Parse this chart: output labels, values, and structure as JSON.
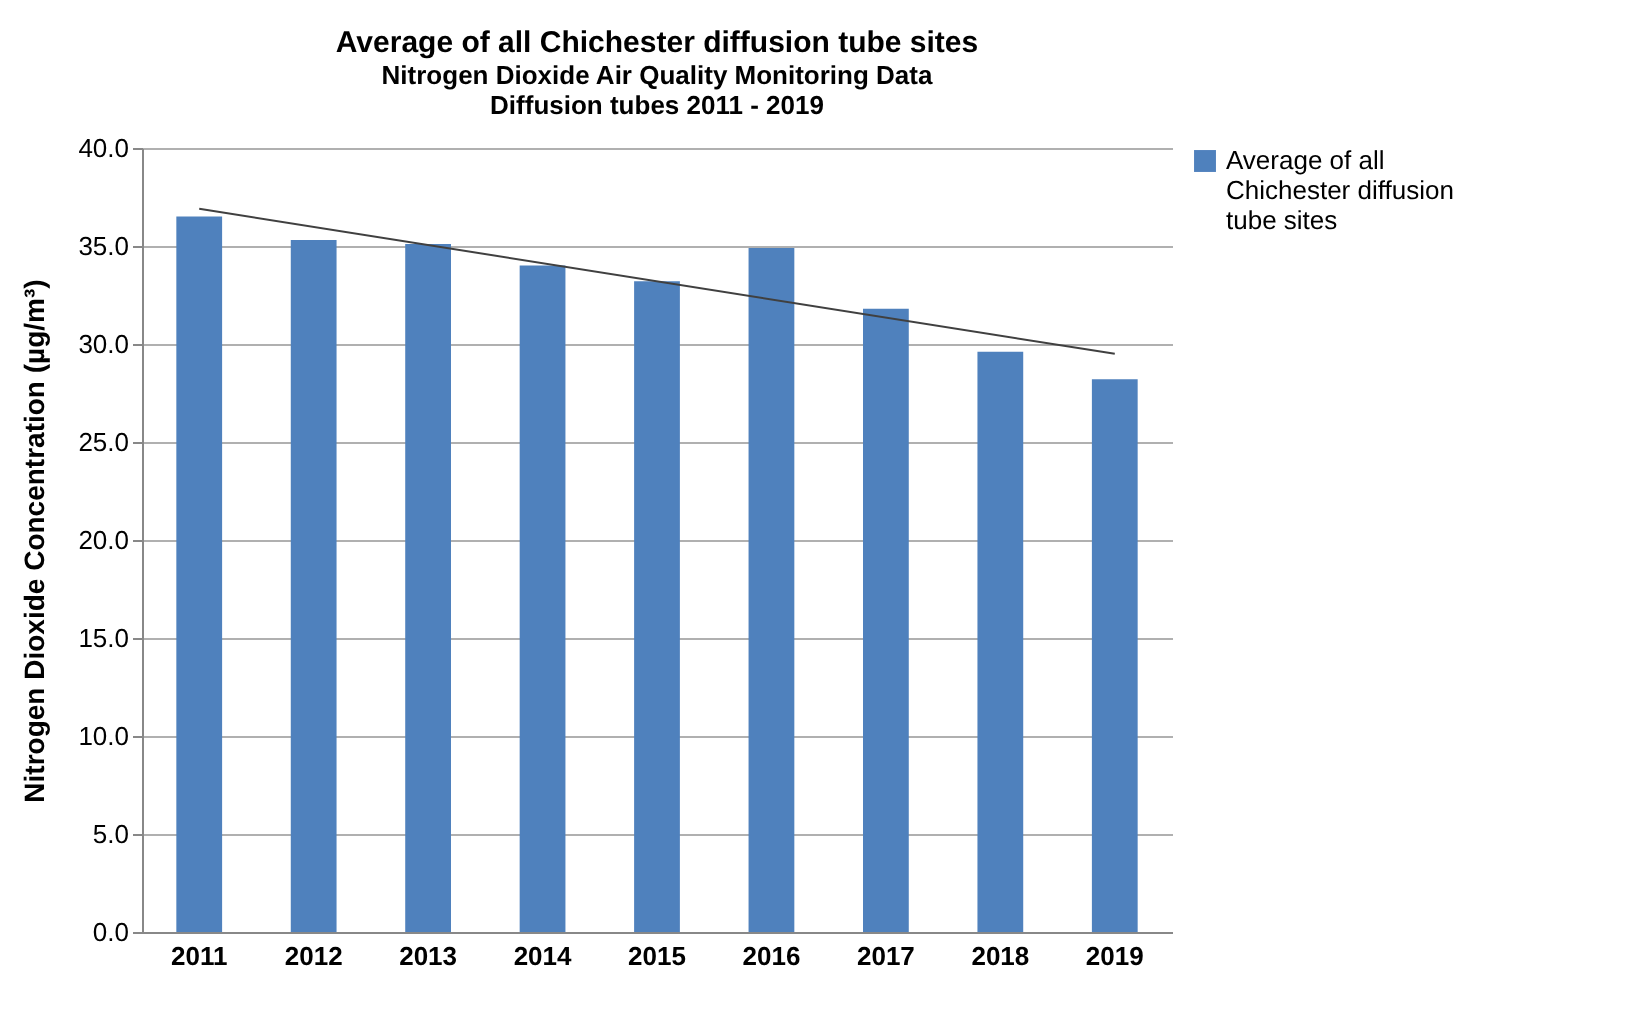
{
  "chart_data": {
    "type": "bar",
    "title": "Average of all Chichester diffusion tube sites",
    "subtitle": "Nitrogen Dioxide Air Quality  Monitoring Data\nDiffusion tubes 2011 - 2019",
    "ylabel": "Nitrogen Dioxide Concentration  (µg/m³)",
    "categories": [
      "2011",
      "2012",
      "2013",
      "2014",
      "2015",
      "2016",
      "2017",
      "2018",
      "2019"
    ],
    "series": [
      {
        "name": "Average of all Chichester diffusion tube sites",
        "color": "#4f81bd",
        "values": [
          36.5,
          35.3,
          35.1,
          34.0,
          33.2,
          34.9,
          31.8,
          29.6,
          28.2
        ]
      },
      {
        "type": "line",
        "color": "#404040",
        "values": [
          36.9,
          null,
          null,
          null,
          null,
          null,
          null,
          null,
          29.5
        ]
      }
    ],
    "ylim": [
      0,
      40
    ],
    "yticks": [
      {
        "value": 0,
        "label": "0.0"
      },
      {
        "value": 5,
        "label": "5.0"
      },
      {
        "value": 10,
        "label": "10.0"
      },
      {
        "value": 15,
        "label": "15.0"
      },
      {
        "value": 20,
        "label": "20.0"
      },
      {
        "value": 25,
        "label": "25.0"
      },
      {
        "value": 30,
        "label": "30.0"
      },
      {
        "value": 35,
        "label": "35.0"
      },
      {
        "value": 40,
        "label": "40.0"
      }
    ],
    "grid": "y",
    "legend": "right"
  }
}
